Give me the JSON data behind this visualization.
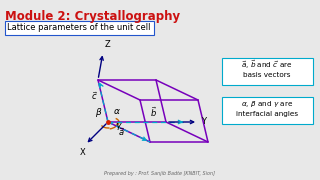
{
  "title": "Module 2: Crystallography",
  "subtitle": "Lattice parameters of the unit cell",
  "bg_color": "#e8e8e8",
  "title_color": "#cc1111",
  "subtitle_box_color": "#2255cc",
  "axis_color": "#000080",
  "cell_color": "#7700bb",
  "dashed_color": "#00aacc",
  "legend_border_color": "#00aacc",
  "angle_arc_color": "#cc6600",
  "footer": "Prepared by : Prof. Sanjib Badte [KNBIT, Sion]",
  "ox": 108,
  "oy": 122,
  "a_vec": [
    42,
    20
  ],
  "b_vec": [
    58,
    0
  ],
  "c_vec": [
    -10,
    -42
  ]
}
